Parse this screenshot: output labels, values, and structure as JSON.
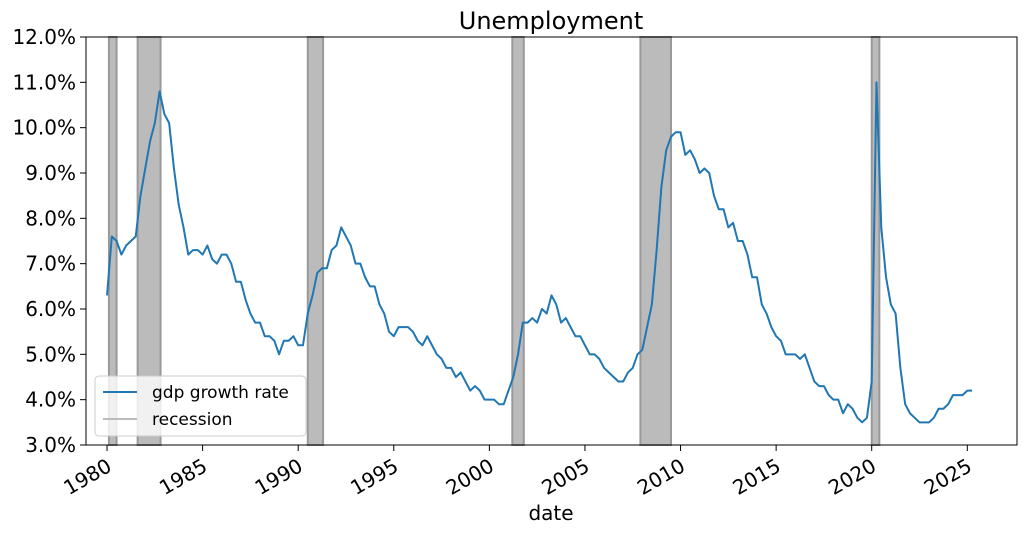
{
  "chart_data": {
    "type": "line",
    "title": "Unemployment",
    "xlabel": "date",
    "ylabel": "",
    "xlim": [
      1978.9,
      2027.6
    ],
    "ylim": [
      3.0,
      12.0
    ],
    "x_ticks": [
      {
        "value": 1980,
        "label": "1980"
      },
      {
        "value": 1985,
        "label": "1985"
      },
      {
        "value": 1990,
        "label": "1990"
      },
      {
        "value": 1995,
        "label": "1995"
      },
      {
        "value": 2000,
        "label": "2000"
      },
      {
        "value": 2005,
        "label": "2005"
      },
      {
        "value": 2010,
        "label": "2010"
      },
      {
        "value": 2015,
        "label": "2015"
      },
      {
        "value": 2020,
        "label": "2020"
      },
      {
        "value": 2025,
        "label": "2025"
      }
    ],
    "y_ticks": [
      {
        "value": 3,
        "label": "3.0%"
      },
      {
        "value": 4,
        "label": "4.0%"
      },
      {
        "value": 5,
        "label": "5.0%"
      },
      {
        "value": 6,
        "label": "6.0%"
      },
      {
        "value": 7,
        "label": "7.0%"
      },
      {
        "value": 8,
        "label": "8.0%"
      },
      {
        "value": 9,
        "label": "9.0%"
      },
      {
        "value": 10,
        "label": "10.0%"
      },
      {
        "value": 11,
        "label": "11.0%"
      },
      {
        "value": 12,
        "label": "12.0%"
      }
    ],
    "grid": false,
    "legend": {
      "position": "lower-left",
      "entries": [
        {
          "label": "gdp growth rate",
          "color": "#1f77b4"
        },
        {
          "label": "recession",
          "color": "#bbbbbb"
        }
      ]
    },
    "recessions": [
      {
        "start": 1980.1,
        "end": 1980.5
      },
      {
        "start": 1981.6,
        "end": 1982.8
      },
      {
        "start": 1990.5,
        "end": 1991.3
      },
      {
        "start": 2001.2,
        "end": 2001.8
      },
      {
        "start": 2007.9,
        "end": 2009.5
      },
      {
        "start": 2020.0,
        "end": 2020.4
      }
    ],
    "series": [
      {
        "name": "gdp growth rate",
        "color": "#1f77b4",
        "x": [
          1980.0,
          1980.25,
          1980.5,
          1980.75,
          1981.0,
          1981.25,
          1981.5,
          1981.75,
          1982.0,
          1982.25,
          1982.5,
          1982.75,
          1983.0,
          1983.25,
          1983.5,
          1983.75,
          1984.0,
          1984.25,
          1984.5,
          1984.75,
          1985.0,
          1985.25,
          1985.5,
          1985.75,
          1986.0,
          1986.25,
          1986.5,
          1986.75,
          1987.0,
          1987.25,
          1987.5,
          1987.75,
          1988.0,
          1988.25,
          1988.5,
          1988.75,
          1989.0,
          1989.25,
          1989.5,
          1989.75,
          1990.0,
          1990.25,
          1990.5,
          1990.75,
          1991.0,
          1991.25,
          1991.5,
          1991.75,
          1992.0,
          1992.25,
          1992.5,
          1992.75,
          1993.0,
          1993.25,
          1993.5,
          1993.75,
          1994.0,
          1994.25,
          1994.5,
          1994.75,
          1995.0,
          1995.25,
          1995.5,
          1995.75,
          1996.0,
          1996.25,
          1996.5,
          1996.75,
          1997.0,
          1997.25,
          1997.5,
          1997.75,
          1998.0,
          1998.25,
          1998.5,
          1998.75,
          1999.0,
          1999.25,
          1999.5,
          1999.75,
          2000.0,
          2000.25,
          2000.5,
          2000.75,
          2001.0,
          2001.25,
          2001.5,
          2001.75,
          2002.0,
          2002.25,
          2002.5,
          2002.75,
          2003.0,
          2003.25,
          2003.5,
          2003.75,
          2004.0,
          2004.25,
          2004.5,
          2004.75,
          2005.0,
          2005.25,
          2005.5,
          2005.75,
          2006.0,
          2006.25,
          2006.5,
          2006.75,
          2007.0,
          2007.25,
          2007.5,
          2007.75,
          2008.0,
          2008.25,
          2008.5,
          2008.75,
          2009.0,
          2009.25,
          2009.5,
          2009.75,
          2010.0,
          2010.25,
          2010.5,
          2010.75,
          2011.0,
          2011.25,
          2011.5,
          2011.75,
          2012.0,
          2012.25,
          2012.5,
          2012.75,
          2013.0,
          2013.25,
          2013.5,
          2013.75,
          2014.0,
          2014.25,
          2014.5,
          2014.75,
          2015.0,
          2015.25,
          2015.5,
          2015.75,
          2016.0,
          2016.25,
          2016.5,
          2016.75,
          2017.0,
          2017.25,
          2017.5,
          2017.75,
          2018.0,
          2018.25,
          2018.5,
          2018.75,
          2019.0,
          2019.25,
          2019.5,
          2019.75,
          2020.0,
          2020.25,
          2020.5,
          2020.75,
          2021.0,
          2021.25,
          2021.5,
          2021.75,
          2022.0,
          2022.25,
          2022.5,
          2022.75,
          2023.0,
          2023.25,
          2023.5,
          2023.75,
          2024.0,
          2024.25,
          2024.5,
          2024.75,
          2025.0,
          2025.25
        ],
        "values": [
          6.3,
          7.6,
          7.5,
          7.2,
          7.4,
          7.5,
          7.6,
          8.5,
          9.1,
          9.7,
          10.1,
          10.8,
          10.3,
          10.1,
          9.1,
          8.3,
          7.8,
          7.2,
          7.3,
          7.3,
          7.2,
          7.4,
          7.1,
          7.0,
          7.2,
          7.2,
          7.0,
          6.6,
          6.6,
          6.2,
          5.9,
          5.7,
          5.7,
          5.4,
          5.4,
          5.3,
          5.0,
          5.3,
          5.3,
          5.4,
          5.2,
          5.2,
          5.9,
          6.3,
          6.8,
          6.9,
          6.9,
          7.3,
          7.4,
          7.8,
          7.6,
          7.4,
          7.0,
          7.0,
          6.7,
          6.5,
          6.5,
          6.1,
          5.9,
          5.5,
          5.4,
          5.6,
          5.6,
          5.6,
          5.5,
          5.3,
          5.2,
          5.4,
          5.2,
          5.0,
          4.9,
          4.7,
          4.7,
          4.5,
          4.6,
          4.4,
          4.2,
          4.3,
          4.2,
          4.0,
          4.0,
          4.0,
          3.9,
          3.9,
          4.2,
          4.5,
          5.0,
          5.7,
          5.7,
          5.8,
          5.7,
          6.0,
          5.9,
          6.3,
          6.1,
          5.7,
          5.8,
          5.6,
          5.4,
          5.4,
          5.2,
          5.0,
          5.0,
          4.9,
          4.7,
          4.6,
          4.5,
          4.4,
          4.4,
          4.6,
          4.7,
          5.0,
          5.1,
          5.6,
          6.1,
          7.3,
          8.7,
          9.5,
          9.8,
          9.9,
          9.9,
          9.4,
          9.5,
          9.3,
          9.0,
          9.1,
          9.0,
          8.5,
          8.2,
          8.2,
          7.8,
          7.9,
          7.5,
          7.5,
          7.2,
          6.7,
          6.7,
          6.1,
          5.9,
          5.6,
          5.4,
          5.3,
          5.0,
          5.0,
          5.0,
          4.9,
          5.0,
          4.7,
          4.4,
          4.3,
          4.3,
          4.1,
          4.0,
          4.0,
          3.7,
          3.9,
          3.8,
          3.6,
          3.5,
          3.6,
          4.4,
          11.0,
          7.8,
          6.7,
          6.1,
          5.9,
          4.7,
          3.9,
          3.7,
          3.6,
          3.5,
          3.5,
          3.5,
          3.6,
          3.8,
          3.8,
          3.9,
          4.1,
          4.1,
          4.1,
          4.2,
          4.2
        ]
      }
    ]
  }
}
